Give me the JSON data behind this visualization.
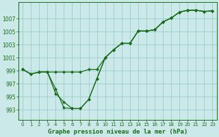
{
  "title": "Graphe pression niveau de la mer (hPa)",
  "bg_color": "#cce9e9",
  "grid_color": "#99cccc",
  "line_color": "#1a6b1a",
  "marker_color": "#1a6b1a",
  "x": [
    0,
    1,
    2,
    3,
    4,
    5,
    6,
    7,
    8,
    9,
    10,
    11,
    12,
    13,
    14,
    15,
    16,
    17,
    18,
    19,
    20,
    21,
    22,
    23
  ],
  "line1": [
    999.2,
    998.5,
    998.8,
    998.8,
    998.8,
    998.8,
    998.8,
    998.8,
    999.2,
    999.2,
    1001.0,
    1002.2,
    1003.2,
    1003.2,
    1005.1,
    1005.1,
    1005.3,
    1006.5,
    1007.1,
    1008.0,
    1008.3,
    1008.3,
    1008.1,
    1008.2
  ],
  "line2": [
    999.2,
    998.5,
    998.8,
    998.8,
    996.2,
    993.3,
    993.2,
    993.2,
    994.6,
    997.8,
    1001.0,
    1002.2,
    1003.2,
    1003.2,
    1005.1,
    1005.1,
    1005.3,
    1006.5,
    1007.1,
    1008.0,
    1008.3,
    1008.3,
    1008.1,
    1008.2
  ],
  "line3": [
    999.2,
    998.5,
    998.8,
    998.8,
    995.5,
    994.2,
    993.2,
    993.2,
    994.6,
    997.8,
    1001.0,
    1002.2,
    1003.2,
    1003.2,
    1005.1,
    1005.1,
    1005.3,
    1006.5,
    1007.1,
    1008.0,
    1008.3,
    1008.3,
    1008.1,
    1008.2
  ],
  "ylim": [
    991.5,
    1009.5
  ],
  "yticks": [
    993,
    995,
    997,
    999,
    1001,
    1003,
    1005,
    1007
  ],
  "xlim": [
    -0.5,
    23.5
  ],
  "xticks": [
    0,
    1,
    2,
    3,
    4,
    5,
    6,
    7,
    8,
    9,
    10,
    11,
    12,
    13,
    14,
    15,
    16,
    17,
    18,
    19,
    20,
    21,
    22,
    23
  ],
  "tick_fontsize": 5.5,
  "xlabel_fontsize": 6.5
}
